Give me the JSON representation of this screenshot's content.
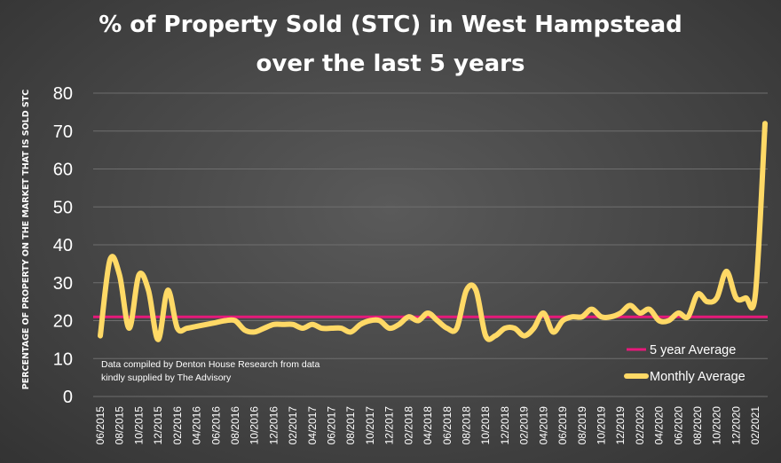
{
  "chart_data": {
    "type": "line",
    "title_line1": "% of Property Sold (STC) in West Hampstead",
    "title_line2": "over the last 5 years",
    "ylabel": "PERCENTAGE OF PROPERTY ON THE MARKET THAT IS SOLD STC",
    "xlabel": "",
    "ylim": [
      0,
      80
    ],
    "yticks": [
      0,
      10,
      20,
      30,
      40,
      50,
      60,
      70,
      80
    ],
    "grid": true,
    "legend_position": "bottom-right",
    "x_tick_labels": [
      "06/2015",
      "08/2015",
      "10/2015",
      "12/2015",
      "02/2016",
      "04/2016",
      "06/2016",
      "08/2016",
      "10/2016",
      "12/2016",
      "02/2017",
      "04/2017",
      "06/2017",
      "08/2017",
      "10/2017",
      "12/2017",
      "02/2018",
      "04/2018",
      "06/2018",
      "08/2018",
      "10/2018",
      "12/2018",
      "02/2019",
      "04/2019",
      "06/2019",
      "08/2019",
      "10/2019",
      "12/2019",
      "02/2020",
      "04/2020",
      "06/2020",
      "08/2020",
      "10/2020",
      "12/2020",
      "02/2021"
    ],
    "months": [
      "06/2015",
      "07/2015",
      "08/2015",
      "09/2015",
      "10/2015",
      "11/2015",
      "12/2015",
      "01/2016",
      "02/2016",
      "03/2016",
      "04/2016",
      "05/2016",
      "06/2016",
      "07/2016",
      "08/2016",
      "09/2016",
      "10/2016",
      "11/2016",
      "12/2016",
      "01/2017",
      "02/2017",
      "03/2017",
      "04/2017",
      "05/2017",
      "06/2017",
      "07/2017",
      "08/2017",
      "09/2017",
      "10/2017",
      "11/2017",
      "12/2017",
      "01/2018",
      "02/2018",
      "03/2018",
      "04/2018",
      "05/2018",
      "06/2018",
      "07/2018",
      "08/2018",
      "09/2018",
      "10/2018",
      "11/2018",
      "12/2018",
      "01/2019",
      "02/2019",
      "03/2019",
      "04/2019",
      "05/2019",
      "06/2019",
      "07/2019",
      "08/2019",
      "09/2019",
      "10/2019",
      "11/2019",
      "12/2019",
      "01/2020",
      "02/2020",
      "03/2020",
      "04/2020",
      "05/2020",
      "06/2020",
      "07/2020",
      "08/2020",
      "09/2020",
      "10/2020",
      "11/2020",
      "12/2020",
      "01/2021",
      "02/2021",
      "03/2021"
    ],
    "series": [
      {
        "name": "Monthly Average",
        "color": "#FFD966",
        "values": [
          16,
          36,
          32,
          18,
          32,
          28,
          15,
          28,
          18,
          18,
          18.5,
          19,
          19.5,
          20,
          20,
          17.5,
          17,
          18,
          19,
          19,
          19,
          18,
          19,
          18,
          18,
          18,
          17,
          19,
          20,
          20,
          18,
          19,
          21,
          20,
          22,
          20,
          18,
          18,
          28,
          28,
          16,
          16,
          18,
          18,
          16,
          18,
          22,
          17,
          20,
          21,
          21,
          23,
          21,
          21,
          22,
          24,
          22,
          23,
          20,
          20,
          22,
          21,
          27,
          25,
          26,
          33,
          26,
          26,
          27,
          72
        ]
      },
      {
        "name": "5 year Average",
        "color": "#E6197A",
        "values": [
          21,
          21
        ]
      }
    ],
    "note_line1": "Data compiled by Denton House Research from data",
    "note_line2": "kindly supplied by The Advisory"
  }
}
